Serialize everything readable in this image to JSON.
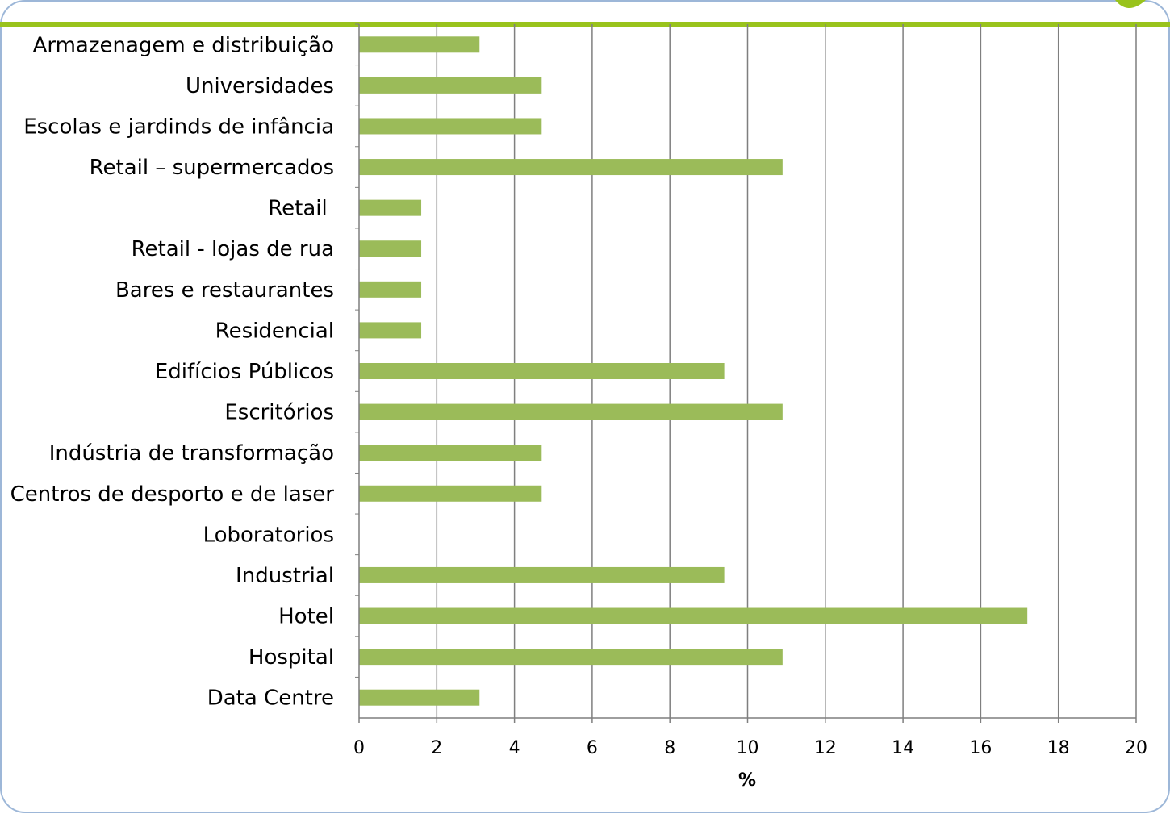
{
  "chart_data": {
    "type": "bar",
    "orientation": "horizontal",
    "categories": [
      "Armazenagem e distribuição",
      "Universidades",
      "Escolas e jardinds de infância",
      "Retail – supermercados",
      "Retail ",
      "Retail - lojas de rua",
      "Bares e restaurantes",
      "Residencial",
      "Edifícios Públicos",
      "Escritórios",
      "Indústria de transformação",
      "Centros de desporto e de laser",
      "Loboratorios",
      "Industrial",
      "Hotel",
      "Hospital",
      "Data Centre"
    ],
    "values": [
      3.1,
      4.7,
      4.7,
      10.9,
      1.6,
      1.6,
      1.6,
      1.6,
      9.4,
      10.9,
      4.7,
      4.7,
      0,
      9.4,
      17.2,
      10.9,
      3.1
    ],
    "title": "",
    "xlabel": "%",
    "ylabel": "",
    "xlim": [
      0,
      20
    ],
    "xticks": [
      "0",
      "2",
      "4",
      "6",
      "8",
      "10",
      "12",
      "14",
      "16",
      "18",
      "20"
    ],
    "grid": "vertical",
    "legend": "none",
    "bar_color": "#9BBB59",
    "grid_color": "#7F7F7F",
    "accent_color": "#99C31C"
  }
}
